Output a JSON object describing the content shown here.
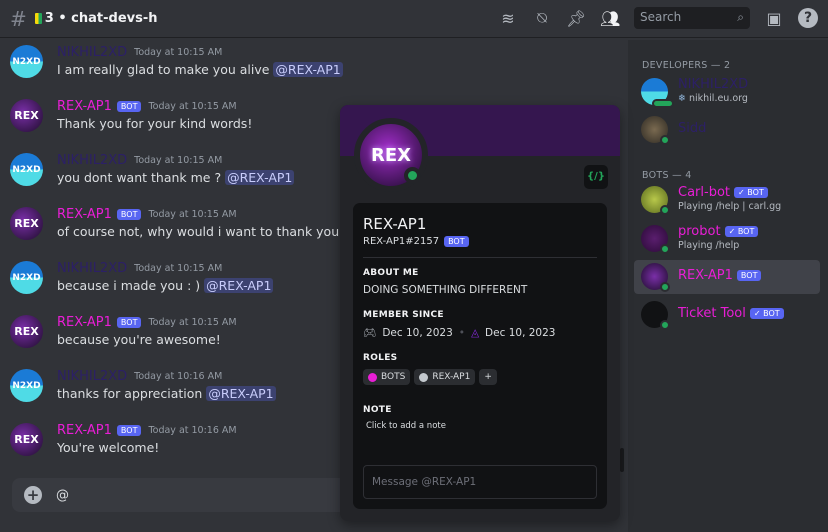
{
  "header": {
    "channel": "3 • chat-devs-h",
    "search_placeholder": "Search",
    "icons": [
      "threads-icon",
      "bell-muted-icon",
      "pin-icon",
      "members-icon",
      "inbox-icon",
      "help-icon"
    ]
  },
  "messages": [
    {
      "author": "NIKHIL2XD",
      "avatar": "N2XD",
      "type": "dev",
      "time": "Today at 10:15 AM",
      "text": "I am really glad to make you alive",
      "mention": "@REX-AP1"
    },
    {
      "author": "REX-AP1",
      "avatar": "REX",
      "type": "bot",
      "badge": "BOT",
      "time": "Today at 10:15 AM",
      "text": "Thank you for your kind words!"
    },
    {
      "author": "NIKHIL2XD",
      "avatar": "N2XD",
      "type": "dev",
      "time": "Today at 10:15 AM",
      "text": "you dont want thank me ?",
      "mention": "@REX-AP1"
    },
    {
      "author": "REX-AP1",
      "avatar": "REX",
      "type": "bot",
      "badge": "BOT",
      "time": "Today at 10:15 AM",
      "text": "of course not, why would i want to thank you?"
    },
    {
      "author": "NIKHIL2XD",
      "avatar": "N2XD",
      "type": "dev",
      "time": "Today at 10:15 AM",
      "text": "because i made you : )",
      "mention": "@REX-AP1"
    },
    {
      "author": "REX-AP1",
      "avatar": "REX",
      "type": "bot",
      "badge": "BOT",
      "time": "Today at 10:15 AM",
      "text": "because you're awesome!"
    },
    {
      "author": "NIKHIL2XD",
      "avatar": "N2XD",
      "type": "dev",
      "time": "Today at 10:16 AM",
      "text": "thanks for appreciation",
      "mention": "@REX-AP1"
    },
    {
      "author": "REX-AP1",
      "avatar": "REX",
      "type": "bot",
      "badge": "BOT",
      "time": "Today at 10:16 AM",
      "text": "You're welcome!"
    }
  ],
  "composer": {
    "value": "@"
  },
  "members": {
    "developers_header": "DEVELOPERS — 2",
    "developers": [
      {
        "name": "NIKHIL2XD",
        "status": "nikhil.eu.org"
      },
      {
        "name": "Sidd",
        "status": ""
      }
    ],
    "bots_header": "BOTS — 4",
    "bots": [
      {
        "name": "Carl-bot",
        "badge": "✓ BOT",
        "status": "Playing /help | carl.gg"
      },
      {
        "name": "probot",
        "badge": "✓ BOT",
        "status": "Playing /help"
      },
      {
        "name": "REX-AP1",
        "badge": "BOT",
        "status": ""
      },
      {
        "name": "Ticket Tool",
        "badge": "✓ BOT",
        "status": ""
      }
    ]
  },
  "profile": {
    "avatar": "REX",
    "name": "REX-AP1",
    "tag": "REX-AP1#2157",
    "badge": "BOT",
    "dev_badge": "{/}",
    "about_label": "ABOUT ME",
    "about": "DOING SOMETHING DIFFERENT",
    "since_label": "MEMBER SINCE",
    "discord_since": "Dec 10, 2023",
    "server_since": "Dec 10, 2023",
    "roles_label": "ROLES",
    "roles": [
      {
        "name": "BOTS",
        "color": "#e91ed6"
      },
      {
        "name": "REX-AP1",
        "color": "#c4c9ce"
      }
    ],
    "add_role": "+",
    "note_label": "NOTE",
    "note_placeholder": "Click to add a note",
    "message_placeholder": "Message @REX-AP1"
  },
  "colors": {
    "developer": "#2c2066",
    "bot": "#e91ed6",
    "blurple": "#5865f2",
    "online": "#23a55a"
  }
}
